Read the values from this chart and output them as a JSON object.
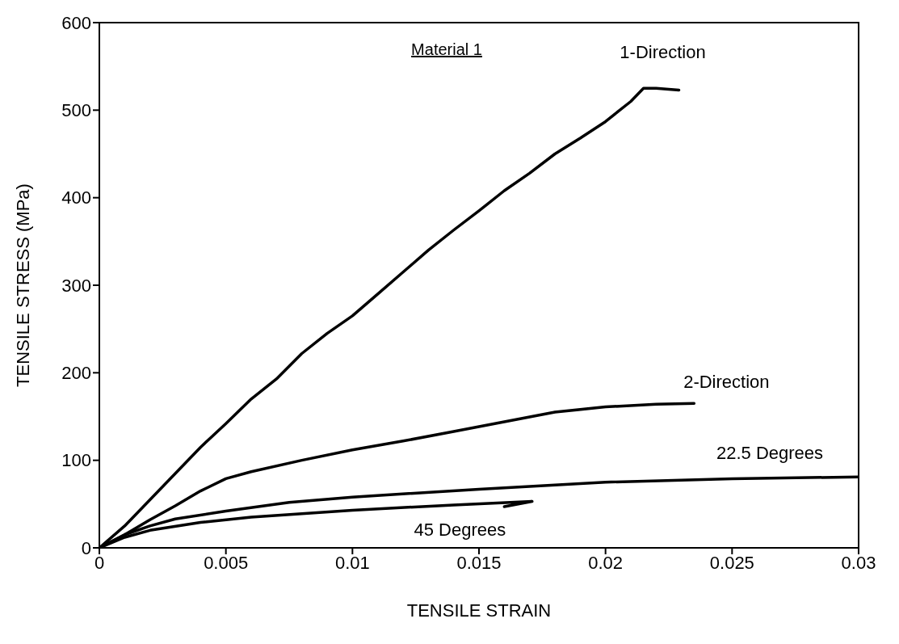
{
  "chart_data": {
    "type": "line",
    "xlabel": "TENSILE STRAIN",
    "ylabel": "TENSILE STRESS (MPa)",
    "xlim": [
      0,
      0.03
    ],
    "xticks": [
      0,
      0.005,
      0.01,
      0.015,
      0.02,
      0.025,
      0.03
    ],
    "ylim": [
      0,
      600
    ],
    "yticks": [
      0,
      100,
      200,
      300,
      400,
      500,
      600
    ],
    "grid": false,
    "legend": false,
    "series": [
      {
        "name": "1-Direction",
        "color": "#000000",
        "x": [
          0,
          0.001,
          0.002,
          0.003,
          0.004,
          0.005,
          0.006,
          0.007,
          0.008,
          0.009,
          0.01,
          0.011,
          0.012,
          0.013,
          0.014,
          0.015,
          0.016,
          0.017,
          0.018,
          0.019,
          0.02,
          0.021,
          0.0215,
          0.022,
          0.0229
        ],
        "values": [
          0,
          25,
          55,
          85,
          115,
          142,
          170,
          193,
          222,
          245,
          265,
          290,
          315,
          340,
          363,
          385,
          408,
          428,
          450,
          468,
          487,
          510,
          525,
          525,
          523
        ]
      },
      {
        "name": "2-Direction",
        "color": "#000000",
        "x": [
          0,
          0.001,
          0.002,
          0.003,
          0.004,
          0.005,
          0.006,
          0.008,
          0.01,
          0.012,
          0.014,
          0.016,
          0.018,
          0.02,
          0.022,
          0.0235
        ],
        "values": [
          0,
          15,
          32,
          48,
          65,
          79,
          87,
          100,
          112,
          122,
          133,
          144,
          155,
          161,
          164,
          165
        ]
      },
      {
        "name": "22.5 Degrees",
        "color": "#000000",
        "x": [
          0,
          0.001,
          0.002,
          0.003,
          0.005,
          0.0075,
          0.01,
          0.015,
          0.02,
          0.025,
          0.03
        ],
        "values": [
          0,
          15,
          25,
          33,
          42,
          52,
          58,
          67,
          75,
          79,
          81
        ]
      },
      {
        "name": "45 Degrees",
        "color": "#000000",
        "x": [
          0,
          0.001,
          0.002,
          0.004,
          0.006,
          0.01,
          0.014,
          0.0171,
          0.016
        ],
        "values": [
          0,
          12,
          20,
          29,
          35,
          43,
          49,
          53,
          47
        ]
      }
    ],
    "annotations": [
      "Material 1"
    ]
  }
}
